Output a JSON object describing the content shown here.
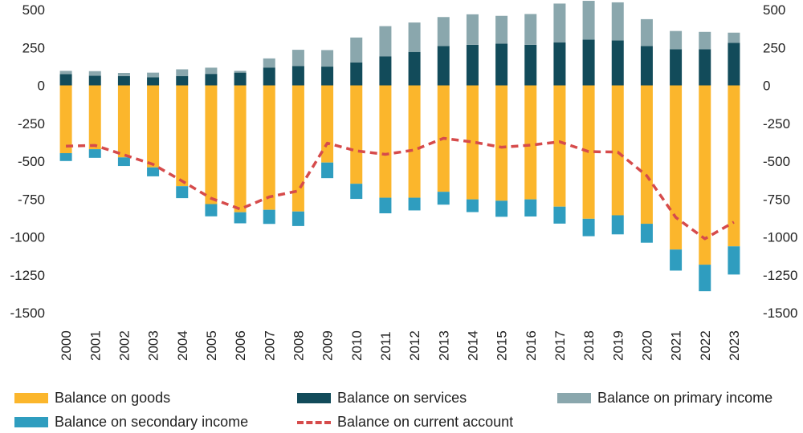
{
  "chart_data": {
    "type": "bar",
    "stacked": true,
    "categories": [
      "2000",
      "2001",
      "2002",
      "2003",
      "2004",
      "2005",
      "2006",
      "2007",
      "2008",
      "2009",
      "2010",
      "2011",
      "2012",
      "2013",
      "2014",
      "2015",
      "2016",
      "2017",
      "2018",
      "2019",
      "2020",
      "2021",
      "2022",
      "2023"
    ],
    "series": [
      {
        "name": "Balance on goods",
        "kind": "bar",
        "color": "#fbb62c",
        "values": [
          -447,
          -421,
          -475,
          -541,
          -665,
          -783,
          -837,
          -821,
          -832,
          -509,
          -649,
          -741,
          -741,
          -702,
          -752,
          -761,
          -752,
          -800,
          -880,
          -857,
          -913,
          -1083,
          -1183,
          -1062
        ]
      },
      {
        "name": "Balance on services",
        "kind": "bar",
        "color": "#124b5a",
        "values": [
          75,
          64,
          61,
          54,
          62,
          76,
          84,
          118,
          127,
          124,
          152,
          192,
          221,
          260,
          268,
          275,
          268,
          283,
          302,
          297,
          260,
          238,
          239,
          281
        ]
      },
      {
        "name": "Balance on primary income",
        "kind": "bar",
        "color": "#8aa7ad",
        "values": [
          21,
          30,
          21,
          30,
          44,
          41,
          12,
          60,
          108,
          109,
          164,
          199,
          194,
          191,
          201,
          184,
          203,
          257,
          256,
          251,
          177,
          121,
          114,
          67
        ]
      },
      {
        "name": "Balance on secondary income",
        "kind": "bar",
        "color": "#2f9dbf",
        "values": [
          -52,
          -57,
          -57,
          -59,
          -79,
          -81,
          -73,
          -93,
          -96,
          -103,
          -100,
          -103,
          -84,
          -85,
          -84,
          -106,
          -113,
          -112,
          -115,
          -126,
          -125,
          -139,
          -175,
          -186
        ]
      },
      {
        "name": "Balance on current account",
        "kind": "line",
        "color": "#d64b4b",
        "values": [
          -401,
          -396,
          -458,
          -521,
          -631,
          -745,
          -816,
          -736,
          -696,
          -381,
          -432,
          -455,
          -426,
          -349,
          -373,
          -408,
          -394,
          -372,
          -437,
          -440,
          -596,
          -871,
          -1012,
          -902
        ]
      }
    ],
    "yticks": [
      500,
      250,
      0,
      -250,
      -500,
      -750,
      -1000,
      -1250,
      -1500
    ],
    "ytick_labels": [
      "500",
      "250",
      "0",
      "-250",
      "-500",
      "-750",
      "-1000",
      "-1250",
      "-1500"
    ],
    "ylim": [
      -1500,
      500
    ],
    "grid": false,
    "legend_position": "bottom"
  }
}
